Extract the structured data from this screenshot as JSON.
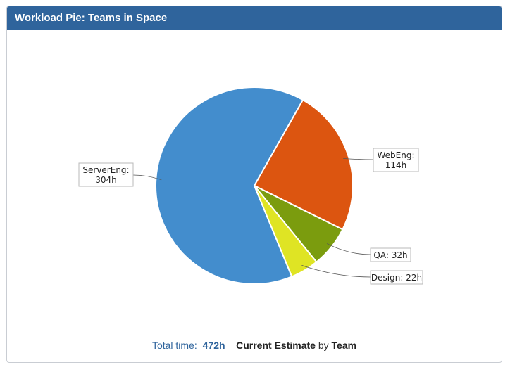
{
  "gadget": {
    "title": "Workload Pie: Teams in Space"
  },
  "footer": {
    "total_label": "Total time:",
    "total_value": "472h",
    "estimate_label": "Current Estimate",
    "by_word": "by",
    "group_label": "Team"
  },
  "chart_data": {
    "type": "pie",
    "unit": "h",
    "slices": [
      {
        "name": "ServerEng",
        "value": 304,
        "color": "#438dcd",
        "label_lines": [
          "ServerEng:",
          "304h"
        ]
      },
      {
        "name": "WebEng",
        "value": 114,
        "color": "#dc5510",
        "label_lines": [
          "WebEng:",
          "114h"
        ]
      },
      {
        "name": "QA",
        "value": 32,
        "color": "#7b9c0e",
        "label_lines": [
          "QA: 32h"
        ]
      },
      {
        "name": "Design",
        "value": 22,
        "color": "#dfe424",
        "label_lines": [
          "Design: 22h"
        ]
      }
    ]
  }
}
